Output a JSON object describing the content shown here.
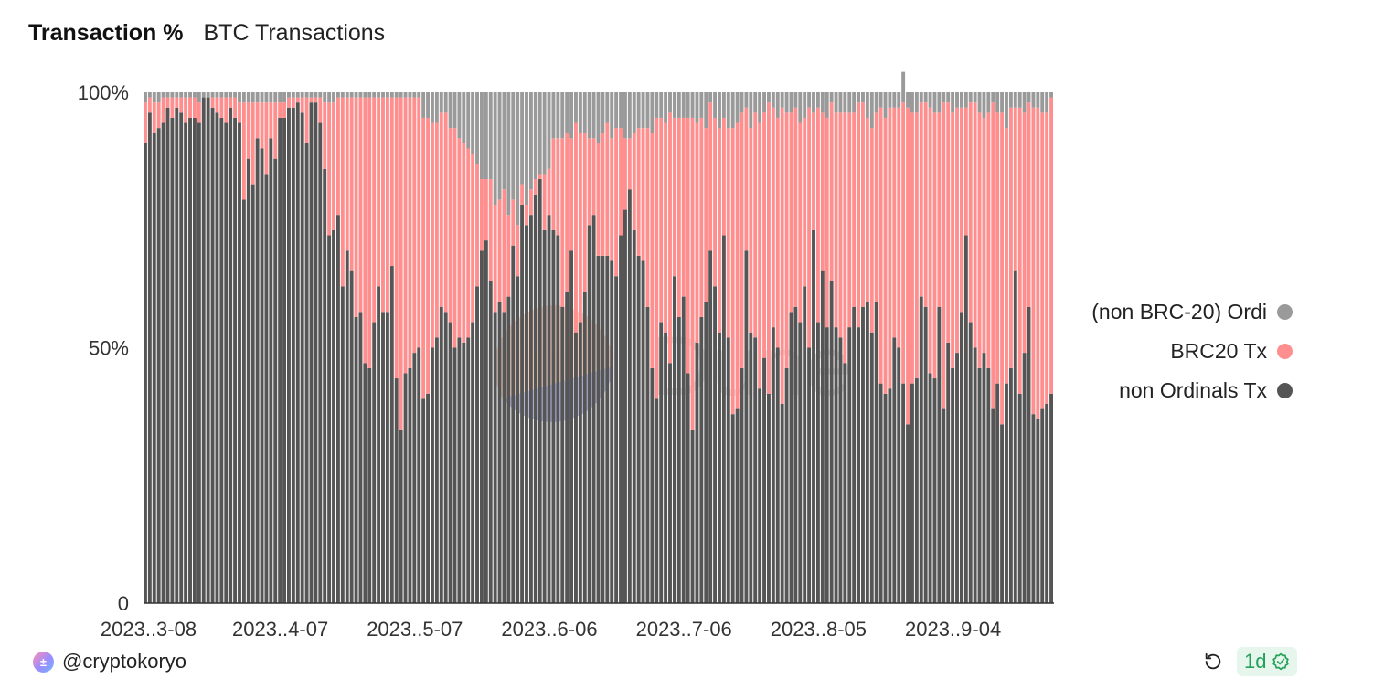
{
  "header": {
    "title": "Transaction %",
    "subtitle": "BTC Transactions"
  },
  "footer": {
    "author": "@cryptokoryo",
    "badge": "1d",
    "avatar_initial": "±"
  },
  "watermark": "Dune",
  "legend": [
    {
      "label": "(non BRC-20) Ordi",
      "color": "#9a9a9a"
    },
    {
      "label": "BRC20 Tx",
      "color": "#ff8f8f"
    },
    {
      "label": "non Ordinals Tx",
      "color": "#555555"
    }
  ],
  "chart_data": {
    "type": "bar",
    "stacked": true,
    "normalized": true,
    "title": "Transaction %",
    "subtitle": "BTC Transactions",
    "ylim": [
      0,
      100
    ],
    "y_ticks": [
      "0",
      "50%",
      "100%"
    ],
    "x_ticks": [
      "2023..3-08",
      "2023..4-07",
      "2023..5-07",
      "2023..6-06",
      "2023..7-06",
      "2023..8-05",
      "2023..9-04"
    ],
    "x_start": "2023-03-08",
    "legend_position": "right",
    "grid": false,
    "series": [
      {
        "name": "non Ordinals Tx",
        "color": "#555555",
        "values": [
          90,
          96,
          92,
          93,
          94,
          97,
          95,
          97,
          96,
          94,
          95,
          95,
          94,
          99,
          99,
          97,
          96,
          95,
          94,
          97,
          95,
          94,
          79,
          87,
          82,
          91,
          89,
          84,
          91,
          87,
          95,
          95,
          97,
          97,
          98,
          96,
          90,
          98,
          98,
          94,
          85,
          72,
          73,
          76,
          62,
          69,
          65,
          56,
          57,
          47,
          46,
          55,
          62,
          57,
          57,
          66,
          44,
          34,
          45,
          46,
          49,
          50,
          40,
          41,
          50,
          52,
          58,
          57,
          55,
          50,
          52,
          51,
          52,
          55,
          62,
          69,
          71,
          63,
          57,
          59,
          57,
          60,
          70,
          64,
          78,
          74,
          76,
          80,
          83,
          73,
          76,
          73,
          72,
          58,
          61,
          69,
          53,
          55,
          61,
          74,
          76,
          68,
          68,
          68,
          67,
          64,
          72,
          77,
          81,
          73,
          68,
          67,
          58,
          46,
          40,
          55,
          53,
          47,
          64,
          56,
          60,
          45,
          34,
          51,
          56,
          59,
          69,
          62,
          53,
          72,
          52,
          37,
          38,
          46,
          69,
          53,
          52,
          42,
          48,
          41,
          54,
          50,
          39,
          46,
          57,
          58,
          55,
          62,
          50,
          73,
          55,
          65,
          54,
          63,
          54,
          52,
          47,
          54,
          58,
          54,
          58,
          59,
          53,
          59,
          43,
          41,
          42,
          52,
          50,
          43,
          35,
          43,
          44,
          60,
          58,
          45,
          44,
          58,
          38,
          51,
          46,
          49,
          57,
          72,
          55,
          50,
          46,
          49,
          46,
          38,
          43,
          35,
          43,
          46,
          65,
          41,
          49,
          58,
          37,
          36,
          38,
          39,
          41
        ]
      },
      {
        "name": "BRC20 Tx",
        "color": "#ff8f8f",
        "values": [
          8,
          3,
          6,
          5,
          5,
          2,
          4,
          2,
          3,
          5,
          4,
          4,
          4,
          0,
          0,
          2,
          3,
          4,
          5,
          2,
          4,
          4,
          19,
          11,
          16,
          7,
          9,
          14,
          7,
          11,
          3,
          3,
          2,
          2,
          1,
          3,
          9,
          1,
          1,
          5,
          13,
          26,
          25,
          23,
          37,
          30,
          34,
          43,
          42,
          52,
          53,
          44,
          37,
          42,
          42,
          33,
          55,
          65,
          54,
          53,
          50,
          49,
          55,
          54,
          44,
          42,
          38,
          39,
          38,
          43,
          39,
          39,
          37,
          33,
          24,
          14,
          12,
          20,
          21,
          20,
          24,
          16,
          9,
          10,
          4,
          4,
          5,
          3,
          1,
          11,
          9,
          18,
          19,
          33,
          31,
          22,
          41,
          37,
          31,
          17,
          15,
          22,
          24,
          26,
          24,
          29,
          21,
          14,
          10,
          19,
          25,
          26,
          35,
          46,
          55,
          40,
          41,
          49,
          31,
          39,
          35,
          50,
          61,
          43,
          39,
          34,
          29,
          33,
          40,
          23,
          41,
          56,
          56,
          50,
          28,
          40,
          44,
          52,
          48,
          57,
          43,
          45,
          58,
          50,
          39,
          39,
          39,
          33,
          47,
          23,
          42,
          31,
          41,
          35,
          42,
          44,
          49,
          42,
          38,
          44,
          40,
          36,
          40,
          37,
          54,
          54,
          55,
          45,
          47,
          55,
          62,
          53,
          52,
          38,
          40,
          52,
          52,
          38,
          60,
          47,
          50,
          48,
          40,
          25,
          43,
          48,
          50,
          46,
          50,
          60,
          53,
          61,
          50,
          51,
          32,
          56,
          47,
          40,
          60,
          61,
          58,
          57,
          58
        ]
      },
      {
        "name": "(non BRC-20) Ordi",
        "color": "#9a9a9a",
        "values": [
          2,
          1,
          2,
          2,
          1,
          1,
          1,
          1,
          1,
          1,
          1,
          1,
          2,
          1,
          1,
          1,
          1,
          1,
          1,
          1,
          1,
          2,
          2,
          2,
          2,
          2,
          2,
          2,
          2,
          2,
          2,
          2,
          1,
          1,
          1,
          1,
          1,
          1,
          1,
          1,
          2,
          2,
          2,
          1,
          1,
          1,
          1,
          1,
          1,
          1,
          1,
          1,
          1,
          1,
          1,
          1,
          1,
          1,
          1,
          1,
          1,
          1,
          5,
          5,
          6,
          6,
          4,
          4,
          7,
          7,
          9,
          10,
          11,
          12,
          14,
          17,
          17,
          17,
          22,
          21,
          19,
          24,
          21,
          26,
          18,
          22,
          19,
          17,
          16,
          16,
          15,
          9,
          9,
          9,
          8,
          9,
          6,
          8,
          8,
          9,
          9,
          10,
          8,
          6,
          9,
          7,
          7,
          9,
          9,
          8,
          7,
          7,
          7,
          8,
          5,
          5,
          6,
          4,
          5,
          5,
          5,
          5,
          5,
          6,
          5,
          7,
          2,
          5,
          7,
          5,
          7,
          7,
          6,
          4,
          3,
          7,
          4,
          6,
          4,
          2,
          3,
          5,
          3,
          4,
          4,
          3,
          6,
          5,
          3,
          4,
          3,
          4,
          5,
          2,
          4,
          4,
          4,
          4,
          4,
          2,
          2,
          5,
          7,
          4,
          3,
          5,
          3,
          3,
          3,
          6,
          3,
          4,
          4,
          2,
          2,
          3,
          4,
          4,
          2,
          2,
          4,
          3,
          3,
          3,
          2,
          2,
          4,
          5,
          4,
          2,
          4,
          4,
          7,
          3,
          3,
          3,
          4,
          2,
          3,
          3,
          4,
          4,
          1
        ]
      }
    ]
  }
}
